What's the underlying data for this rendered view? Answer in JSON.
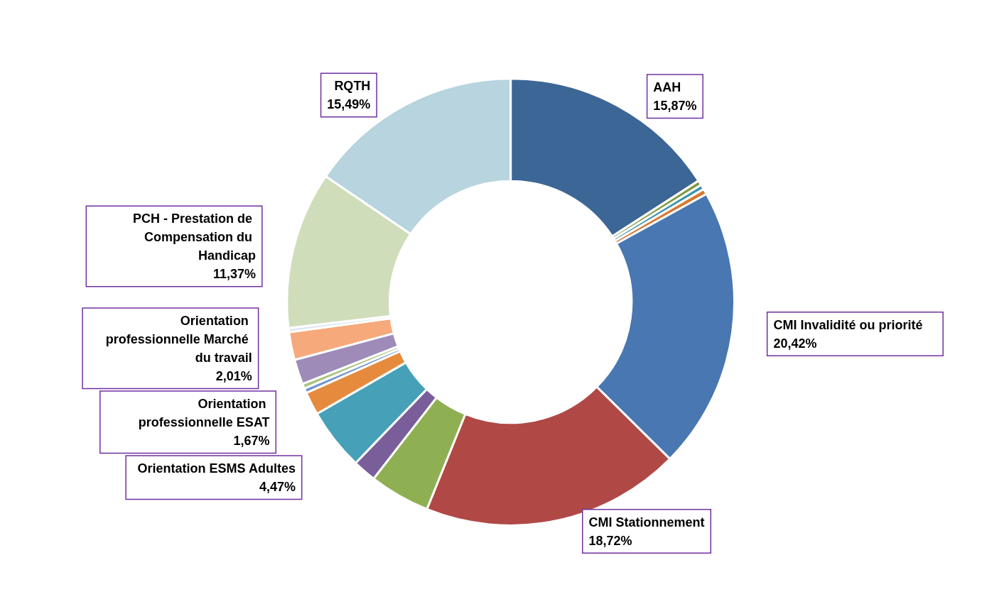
{
  "chart_data": {
    "type": "donut",
    "categories": [
      "AAH",
      null,
      null,
      null,
      "CMI Invalidité ou priorité",
      "CMI Stationnement",
      null,
      null,
      "Orientation ESMS Adultes",
      "Orientation professionnelle ESAT",
      null,
      null,
      null,
      "Orientation professionnelle Marché du travail",
      null,
      "PCH - Prestation de Compensation du Handicap",
      "RQTH"
    ],
    "values": [
      15.87,
      0.35,
      0.35,
      0.4,
      20.42,
      18.72,
      4.38,
      1.7,
      4.47,
      1.67,
      0.35,
      0.35,
      1.8,
      2.01,
      0.3,
      11.37,
      15.49
    ],
    "colors": [
      "#3c6695",
      "#7f9a3e",
      "#3a93ad",
      "#d9772f",
      "#4877b1",
      "#b04946",
      "#8fb052",
      "#7a5e99",
      "#45a0b8",
      "#e68a3e",
      "#7396cf",
      "#a9c47f",
      "#9e8bb8",
      "#f6a97a",
      "#dde6f0",
      "#cfddbb",
      "#b7d4df"
    ],
    "value_labels": [
      "15,87%",
      null,
      null,
      null,
      "20,42%",
      "18,72%",
      null,
      null,
      "4,47%",
      "1,67%",
      null,
      null,
      null,
      "2,01%",
      null,
      "11,37%",
      "15,49%"
    ]
  }
}
